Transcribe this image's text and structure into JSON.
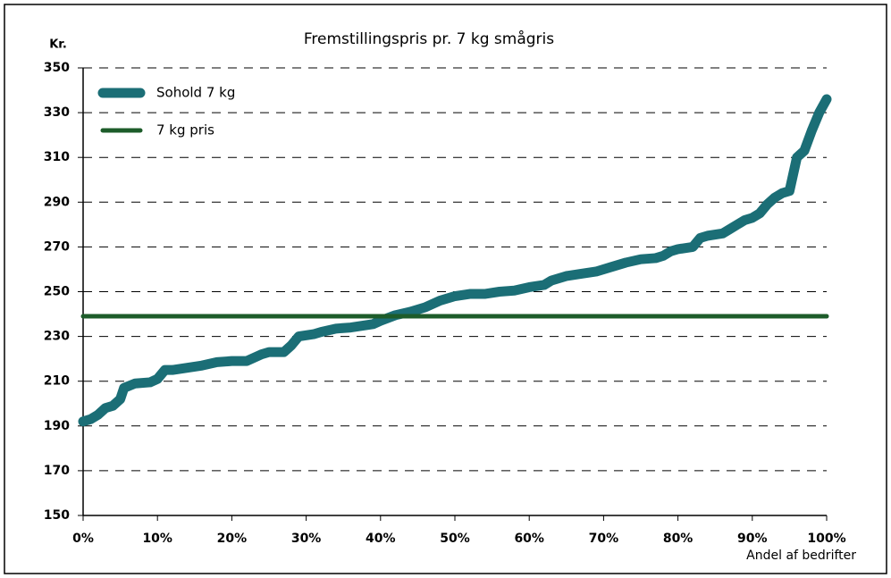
{
  "chart_data": {
    "type": "line",
    "title": "Fremstillingspris pr. 7 kg smågris",
    "y_label": "Kr.",
    "x_label": "Andel af bedrifter",
    "legend": "upper left",
    "grid": true,
    "xlim": [
      0,
      100
    ],
    "xticks": [
      {
        "value": 0,
        "label": "0%"
      },
      {
        "value": 10,
        "label": "10%"
      },
      {
        "value": 20,
        "label": "20%"
      },
      {
        "value": 30,
        "label": "30%"
      },
      {
        "value": 40,
        "label": "40%"
      },
      {
        "value": 50,
        "label": "50%"
      },
      {
        "value": 60,
        "label": "60%"
      },
      {
        "value": 70,
        "label": "70%"
      },
      {
        "value": 80,
        "label": "80%"
      },
      {
        "value": 90,
        "label": "90%"
      },
      {
        "value": 100,
        "label": "100%"
      }
    ],
    "ylim": [
      150,
      350
    ],
    "yticks": [
      150,
      170,
      190,
      210,
      230,
      250,
      270,
      290,
      310,
      330,
      350
    ],
    "series": [
      {
        "name": "Sohold 7 kg",
        "color": "#1b6e76",
        "x": [
          0,
          1,
          2,
          3,
          4,
          5,
          5.5,
          7,
          9,
          10,
          11,
          12,
          14,
          16,
          18,
          20,
          22,
          24,
          25,
          27,
          28,
          29,
          31,
          32,
          34,
          36,
          38,
          39,
          40,
          42,
          44,
          46,
          48,
          50,
          52,
          54,
          56,
          58,
          60,
          62,
          63,
          65,
          67,
          69,
          71,
          73,
          75,
          77,
          78,
          79,
          80,
          82,
          83,
          84,
          86,
          87,
          88,
          89,
          90,
          91,
          92,
          93,
          94,
          95,
          96,
          97,
          98,
          99,
          100
        ],
        "values": [
          192,
          193,
          195,
          198,
          199,
          202,
          207,
          209,
          209.5,
          211,
          215,
          215,
          216,
          217,
          218.5,
          219,
          219,
          222,
          223,
          223,
          226,
          230,
          231,
          232,
          233.5,
          234,
          235,
          235.5,
          237,
          239.5,
          241,
          243,
          246,
          248,
          249,
          249,
          250,
          250.5,
          252,
          253,
          255,
          257,
          258,
          259,
          261,
          263,
          264.5,
          265,
          266,
          268,
          269,
          270,
          274,
          275,
          276,
          278,
          280,
          282,
          283,
          285,
          289,
          292,
          294,
          295,
          310,
          313,
          322,
          330,
          336
        ]
      },
      {
        "name": "7 kg pris",
        "color": "#1d5c2a",
        "x": [
          0,
          100
        ],
        "values": [
          239,
          239
        ]
      }
    ]
  }
}
